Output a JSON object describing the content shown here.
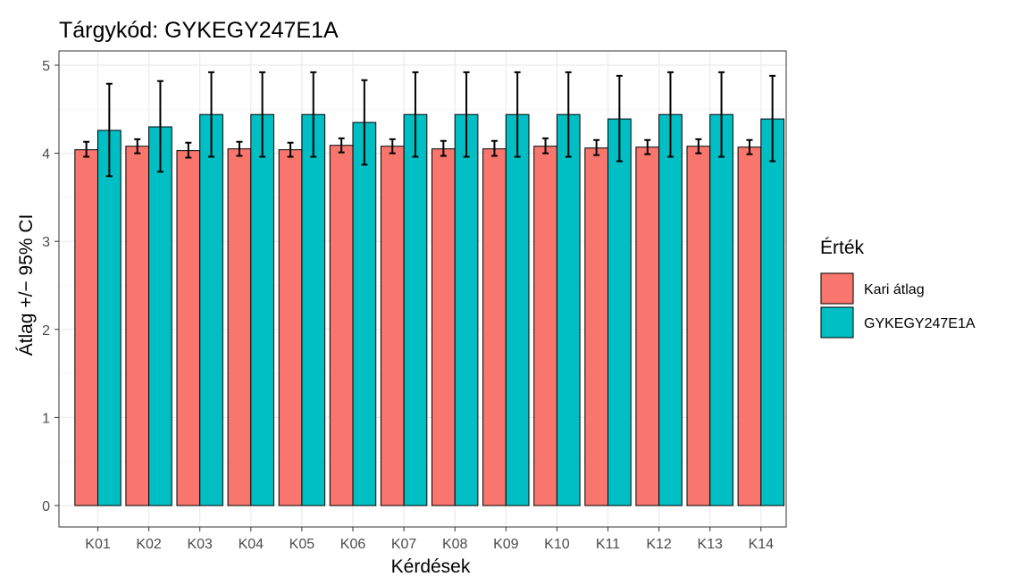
{
  "chart_data": {
    "type": "bar",
    "title": "Tárgykód:  GYKEGY247E1A",
    "xlabel": "Kérdések",
    "ylabel": "Átlag +/− 95% CI",
    "ylim": [
      0,
      5
    ],
    "yticks": [
      0,
      1,
      2,
      3,
      4,
      5
    ],
    "grid": true,
    "legend_title": "Érték",
    "legend_position": "right",
    "categories": [
      "K01",
      "K02",
      "K03",
      "K04",
      "K05",
      "K06",
      "K07",
      "K08",
      "K09",
      "K10",
      "K11",
      "K12",
      "K13",
      "K14"
    ],
    "series": [
      {
        "name": "Kari átlag",
        "color": "#F8766D",
        "values": [
          4.04,
          4.08,
          4.03,
          4.05,
          4.04,
          4.09,
          4.08,
          4.05,
          4.05,
          4.08,
          4.06,
          4.07,
          4.08,
          4.07
        ],
        "ci_low": [
          3.96,
          4.0,
          3.95,
          3.97,
          3.96,
          4.01,
          4.0,
          3.97,
          3.97,
          4.0,
          3.98,
          3.99,
          4.0,
          3.99
        ],
        "ci_high": [
          4.13,
          4.16,
          4.12,
          4.13,
          4.12,
          4.17,
          4.16,
          4.14,
          4.14,
          4.17,
          4.15,
          4.15,
          4.16,
          4.15
        ]
      },
      {
        "name": "GYKEGY247E1A",
        "color": "#00BFC4",
        "values": [
          4.26,
          4.3,
          4.44,
          4.44,
          4.44,
          4.35,
          4.44,
          4.44,
          4.44,
          4.44,
          4.39,
          4.44,
          4.44,
          4.39
        ],
        "ci_low": [
          3.74,
          3.79,
          3.96,
          3.96,
          3.96,
          3.87,
          3.96,
          3.96,
          3.96,
          3.96,
          3.91,
          3.96,
          3.96,
          3.91
        ],
        "ci_high": [
          4.79,
          4.82,
          4.92,
          4.92,
          4.92,
          4.83,
          4.92,
          4.92,
          4.92,
          4.92,
          4.88,
          4.92,
          4.92,
          4.88
        ]
      }
    ]
  }
}
